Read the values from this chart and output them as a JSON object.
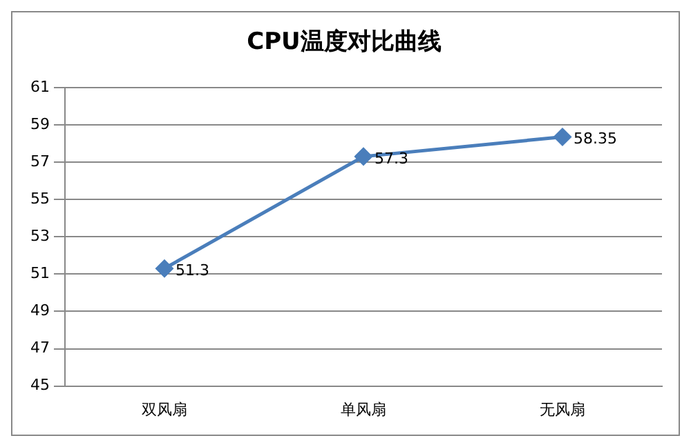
{
  "chart_data": {
    "type": "line",
    "title": "CPU温度对比曲线",
    "categories": [
      "双风扇",
      "单风扇",
      "无风扇"
    ],
    "series": [
      {
        "color": "#4a7ebb",
        "values": [
          51.3,
          57.3,
          58.35
        ]
      }
    ],
    "ylim": [
      45,
      61
    ],
    "yticks": [
      45,
      47,
      49,
      51,
      53,
      55,
      57,
      59,
      61
    ],
    "grid": "y",
    "legend": false,
    "marker": "diamond",
    "line_style": "solid",
    "data_labels": true
  }
}
